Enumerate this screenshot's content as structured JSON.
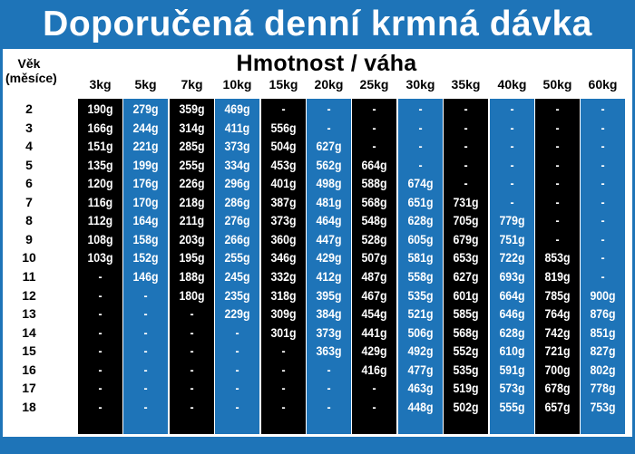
{
  "title": "Doporučená denní krmná dávka",
  "age_header": [
    "Věk",
    "(měsíce)"
  ],
  "weight_header": "Hmotnost / váha",
  "weights": [
    "3kg",
    "5kg",
    "7kg",
    "10kg",
    "15kg",
    "20kg",
    "25kg",
    "30kg",
    "35kg",
    "40kg",
    "50kg",
    "60kg"
  ],
  "column_colors": [
    "black",
    "blue",
    "black",
    "blue",
    "black",
    "blue",
    "black",
    "blue",
    "black",
    "blue",
    "black",
    "blue"
  ],
  "ages": [
    "2",
    "3",
    "4",
    "5",
    "6",
    "7",
    "8",
    "9",
    "10",
    "11",
    "12",
    "13",
    "14",
    "15",
    "16",
    "17",
    "18"
  ],
  "rows": [
    [
      "190g",
      "279g",
      "359g",
      "469g",
      "-",
      "-",
      "-",
      "-",
      "-",
      "-",
      "-",
      "-"
    ],
    [
      "166g",
      "244g",
      "314g",
      "411g",
      "556g",
      "-",
      "-",
      "-",
      "-",
      "-",
      "-",
      "-"
    ],
    [
      "151g",
      "221g",
      "285g",
      "373g",
      "504g",
      "627g",
      "-",
      "-",
      "-",
      "-",
      "-",
      "-"
    ],
    [
      "135g",
      "199g",
      "255g",
      "334g",
      "453g",
      "562g",
      "664g",
      "-",
      "-",
      "-",
      "-",
      "-"
    ],
    [
      "120g",
      "176g",
      "226g",
      "296g",
      "401g",
      "498g",
      "588g",
      "674g",
      "-",
      "-",
      "-",
      "-"
    ],
    [
      "116g",
      "170g",
      "218g",
      "286g",
      "387g",
      "481g",
      "568g",
      "651g",
      "731g",
      "-",
      "-",
      "-"
    ],
    [
      "112g",
      "164g",
      "211g",
      "276g",
      "373g",
      "464g",
      "548g",
      "628g",
      "705g",
      "779g",
      "-",
      "-"
    ],
    [
      "108g",
      "158g",
      "203g",
      "266g",
      "360g",
      "447g",
      "528g",
      "605g",
      "679g",
      "751g",
      "-",
      "-"
    ],
    [
      "103g",
      "152g",
      "195g",
      "255g",
      "346g",
      "429g",
      "507g",
      "581g",
      "653g",
      "722g",
      "853g",
      "-"
    ],
    [
      "-",
      "146g",
      "188g",
      "245g",
      "332g",
      "412g",
      "487g",
      "558g",
      "627g",
      "693g",
      "819g",
      "-"
    ],
    [
      "-",
      "-",
      "180g",
      "235g",
      "318g",
      "395g",
      "467g",
      "535g",
      "601g",
      "664g",
      "785g",
      "900g"
    ],
    [
      "-",
      "-",
      "-",
      "229g",
      "309g",
      "384g",
      "454g",
      "521g",
      "585g",
      "646g",
      "764g",
      "876g"
    ],
    [
      "-",
      "-",
      "-",
      "-",
      "301g",
      "373g",
      "441g",
      "506g",
      "568g",
      "628g",
      "742g",
      "851g"
    ],
    [
      "-",
      "-",
      "-",
      "-",
      "-",
      "363g",
      "429g",
      "492g",
      "552g",
      "610g",
      "721g",
      "827g"
    ],
    [
      "-",
      "-",
      "-",
      "-",
      "-",
      "-",
      "416g",
      "477g",
      "535g",
      "591g",
      "700g",
      "802g"
    ],
    [
      "-",
      "-",
      "-",
      "-",
      "-",
      "-",
      "-",
      "463g",
      "519g",
      "573g",
      "678g",
      "778g"
    ],
    [
      "-",
      "-",
      "-",
      "-",
      "-",
      "-",
      "-",
      "448g",
      "502g",
      "555g",
      "657g",
      "753g"
    ]
  ],
  "colors": {
    "blue": "#1e74b8",
    "black": "#000000"
  }
}
